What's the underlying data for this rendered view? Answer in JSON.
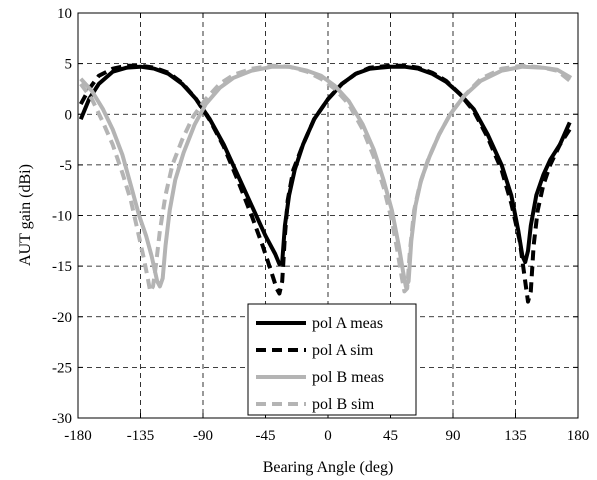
{
  "chart_data": {
    "type": "line",
    "xlabel": "Bearing Angle (deg)",
    "ylabel": "AUT gain (dBi)",
    "xlim": [
      -180,
      180
    ],
    "ylim": [
      -30,
      10
    ],
    "xticks": [
      -180,
      -135,
      -90,
      -45,
      0,
      45,
      90,
      135,
      180
    ],
    "yticks": [
      10,
      5,
      0,
      -5,
      -10,
      -15,
      -20,
      -25,
      -30
    ],
    "grid": "on",
    "legend_position": "bottom-center",
    "series": [
      {
        "name": "pol A meas",
        "color": "#000000",
        "dash": "solid",
        "points": [
          [
            -178,
            -0.5
          ],
          [
            -172,
            1.5
          ],
          [
            -165,
            3.0
          ],
          [
            -155,
            4.2
          ],
          [
            -145,
            4.6
          ],
          [
            -135,
            4.7
          ],
          [
            -125,
            4.5
          ],
          [
            -115,
            4.0
          ],
          [
            -105,
            3.0
          ],
          [
            -95,
            1.5
          ],
          [
            -85,
            -0.5
          ],
          [
            -75,
            -3.0
          ],
          [
            -65,
            -6.0
          ],
          [
            -55,
            -9.0
          ],
          [
            -45,
            -12.0
          ],
          [
            -38,
            -13.8
          ],
          [
            -35,
            -14.8
          ],
          [
            -33,
            -14.6
          ],
          [
            -31,
            -11.0
          ],
          [
            -28,
            -8.0
          ],
          [
            -24,
            -5.5
          ],
          [
            -18,
            -3.0
          ],
          [
            -10,
            -0.5
          ],
          [
            0,
            1.5
          ],
          [
            10,
            3.0
          ],
          [
            20,
            4.0
          ],
          [
            30,
            4.5
          ],
          [
            45,
            4.7
          ],
          [
            55,
            4.7
          ],
          [
            65,
            4.5
          ],
          [
            75,
            4.0
          ],
          [
            85,
            3.2
          ],
          [
            95,
            2.0
          ],
          [
            105,
            0.5
          ],
          [
            115,
            -2.0
          ],
          [
            125,
            -5.0
          ],
          [
            132,
            -8.0
          ],
          [
            137,
            -11.5
          ],
          [
            140,
            -14.0
          ],
          [
            142,
            -14.6
          ],
          [
            144,
            -13.5
          ],
          [
            146,
            -11.0
          ],
          [
            150,
            -8.0
          ],
          [
            155,
            -6.0
          ],
          [
            160,
            -4.5
          ],
          [
            167,
            -3.0
          ],
          [
            174,
            -0.8
          ]
        ]
      },
      {
        "name": "pol A sim",
        "color": "#000000",
        "dash": "dashed",
        "points": [
          [
            -178,
            1.0
          ],
          [
            -172,
            2.5
          ],
          [
            -165,
            3.8
          ],
          [
            -155,
            4.5
          ],
          [
            -145,
            4.8
          ],
          [
            -135,
            4.8
          ],
          [
            -125,
            4.6
          ],
          [
            -115,
            4.1
          ],
          [
            -105,
            3.1
          ],
          [
            -95,
            1.5
          ],
          [
            -85,
            -0.6
          ],
          [
            -75,
            -3.2
          ],
          [
            -65,
            -6.5
          ],
          [
            -55,
            -10.0
          ],
          [
            -47,
            -13.0
          ],
          [
            -41,
            -15.5
          ],
          [
            -37,
            -17.2
          ],
          [
            -35,
            -17.7
          ],
          [
            -33,
            -16.5
          ],
          [
            -31,
            -12.0
          ],
          [
            -29,
            -8.5
          ],
          [
            -25,
            -5.5
          ],
          [
            -18,
            -3.0
          ],
          [
            -10,
            -0.5
          ],
          [
            0,
            1.5
          ],
          [
            10,
            3.0
          ],
          [
            20,
            4.0
          ],
          [
            30,
            4.6
          ],
          [
            45,
            4.8
          ],
          [
            55,
            4.8
          ],
          [
            65,
            4.6
          ],
          [
            75,
            4.1
          ],
          [
            85,
            3.3
          ],
          [
            95,
            2.0
          ],
          [
            105,
            0.3
          ],
          [
            115,
            -2.3
          ],
          [
            125,
            -5.5
          ],
          [
            132,
            -8.8
          ],
          [
            138,
            -12.5
          ],
          [
            142,
            -16.5
          ],
          [
            144,
            -18.5
          ],
          [
            146,
            -17.5
          ],
          [
            148,
            -13.0
          ],
          [
            151,
            -9.5
          ],
          [
            155,
            -7.0
          ],
          [
            160,
            -5.0
          ],
          [
            167,
            -3.0
          ],
          [
            174,
            -1.5
          ]
        ]
      },
      {
        "name": "pol B meas",
        "color": "#b4b4b4",
        "dash": "solid",
        "points": [
          [
            -178,
            3.5
          ],
          [
            -170,
            2.3
          ],
          [
            -162,
            0.5
          ],
          [
            -155,
            -1.5
          ],
          [
            -148,
            -4.0
          ],
          [
            -142,
            -7.0
          ],
          [
            -136,
            -10.0
          ],
          [
            -131,
            -12.0
          ],
          [
            -127,
            -14.0
          ],
          [
            -123,
            -16.5
          ],
          [
            -121,
            -17.0
          ],
          [
            -119,
            -16.2
          ],
          [
            -117,
            -13.0
          ],
          [
            -114,
            -9.5
          ],
          [
            -110,
            -6.5
          ],
          [
            -104,
            -3.8
          ],
          [
            -96,
            -1.0
          ],
          [
            -88,
            1.0
          ],
          [
            -78,
            2.6
          ],
          [
            -68,
            3.6
          ],
          [
            -55,
            4.3
          ],
          [
            -40,
            4.7
          ],
          [
            -28,
            4.7
          ],
          [
            -15,
            4.3
          ],
          [
            -5,
            3.8
          ],
          [
            5,
            2.8
          ],
          [
            15,
            1.3
          ],
          [
            25,
            -1.0
          ],
          [
            33,
            -3.5
          ],
          [
            40,
            -6.5
          ],
          [
            46,
            -9.5
          ],
          [
            51,
            -13.0
          ],
          [
            54,
            -15.5
          ],
          [
            56,
            -17.0
          ],
          [
            58,
            -16.5
          ],
          [
            60,
            -12.5
          ],
          [
            63,
            -9.0
          ],
          [
            67,
            -6.5
          ],
          [
            73,
            -4.2
          ],
          [
            80,
            -2.0
          ],
          [
            88,
            0.0
          ],
          [
            98,
            1.8
          ],
          [
            110,
            3.3
          ],
          [
            125,
            4.3
          ],
          [
            140,
            4.7
          ],
          [
            155,
            4.6
          ],
          [
            165,
            4.4
          ],
          [
            175,
            3.6
          ]
        ]
      },
      {
        "name": "pol B sim",
        "color": "#b4b4b4",
        "dash": "dashed",
        "points": [
          [
            -178,
            3.0
          ],
          [
            -170,
            1.5
          ],
          [
            -162,
            -0.8
          ],
          [
            -155,
            -3.0
          ],
          [
            -148,
            -5.8
          ],
          [
            -142,
            -8.5
          ],
          [
            -137,
            -11.5
          ],
          [
            -133,
            -14.0
          ],
          [
            -130,
            -16.0
          ],
          [
            -128,
            -17.5
          ],
          [
            -126,
            -17.0
          ],
          [
            -124,
            -15.0
          ],
          [
            -121,
            -11.5
          ],
          [
            -117,
            -8.0
          ],
          [
            -112,
            -5.0
          ],
          [
            -105,
            -2.5
          ],
          [
            -97,
            -0.2
          ],
          [
            -88,
            1.5
          ],
          [
            -78,
            3.0
          ],
          [
            -68,
            3.9
          ],
          [
            -55,
            4.5
          ],
          [
            -40,
            4.8
          ],
          [
            -28,
            4.7
          ],
          [
            -15,
            4.2
          ],
          [
            -5,
            3.5
          ],
          [
            5,
            2.5
          ],
          [
            15,
            1.0
          ],
          [
            25,
            -1.5
          ],
          [
            33,
            -4.2
          ],
          [
            40,
            -7.2
          ],
          [
            46,
            -10.5
          ],
          [
            50,
            -13.5
          ],
          [
            53,
            -16.0
          ],
          [
            55,
            -17.5
          ],
          [
            57,
            -17.2
          ],
          [
            59,
            -13.5
          ],
          [
            62,
            -9.5
          ],
          [
            66,
            -7.0
          ],
          [
            72,
            -4.5
          ],
          [
            80,
            -2.0
          ],
          [
            88,
            0.0
          ],
          [
            98,
            1.8
          ],
          [
            110,
            3.5
          ],
          [
            125,
            4.5
          ],
          [
            140,
            4.8
          ],
          [
            155,
            4.6
          ],
          [
            165,
            4.3
          ],
          [
            175,
            3.2
          ]
        ]
      }
    ]
  }
}
